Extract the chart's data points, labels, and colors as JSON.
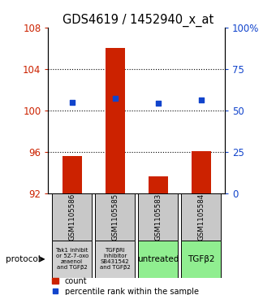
{
  "title": "GDS4619 / 1452940_x_at",
  "samples": [
    "GSM1105586",
    "GSM1105585",
    "GSM1105583",
    "GSM1105584"
  ],
  "counts": [
    95.6,
    106.1,
    93.6,
    96.1
  ],
  "percentiles": [
    55.0,
    57.5,
    54.5,
    56.5
  ],
  "ylim_left": [
    92,
    108
  ],
  "ylim_right": [
    0,
    100
  ],
  "yticks_left": [
    92,
    96,
    100,
    104,
    108
  ],
  "yticks_right": [
    0,
    25,
    50,
    75,
    100
  ],
  "ytick_labels_right": [
    "0",
    "25",
    "50",
    "75",
    "100%"
  ],
  "bar_color": "#cc2200",
  "dot_color": "#1144cc",
  "protocol_labels": [
    "Tak1 inhibit\nor 5Z-7-oxo\nzeaenol\nand TGFβ2",
    "TGFβRI\ninhibitor\nSB431542\nand TGFβ2",
    "untreated",
    "TGFβ2"
  ],
  "protocol_colors": [
    "#d0d0d0",
    "#d0d0d0",
    "#90ee90",
    "#90ee90"
  ],
  "sample_box_color": "#c8c8c8",
  "legend_count_label": "count",
  "legend_pct_label": "percentile rank within the sample"
}
